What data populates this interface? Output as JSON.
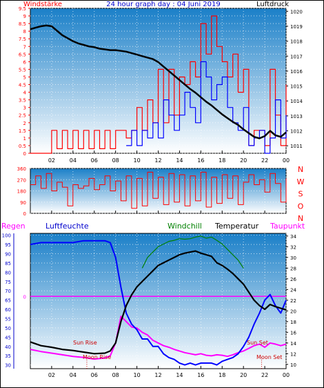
{
  "header": {
    "title": "24 hour graph day : 04 Juni 2019",
    "left_label": "Windstärke",
    "right_label": "Luftdruck"
  },
  "colors": {
    "red": "#ff0000",
    "blue": "#0000ff",
    "black": "#000000",
    "green": "#008000",
    "magenta": "#ff00ff",
    "title_blue": "#0000cc",
    "plot_top": "#1a7fc8",
    "plot_bottom": "#ffffff"
  },
  "x_ticks": [
    "02",
    "04",
    "06",
    "08",
    "10",
    "12",
    "14",
    "16",
    "18",
    "20",
    "22",
    "00"
  ],
  "chart_data": [
    {
      "type": "line",
      "name": "wind-and-pressure",
      "x_unit": "hours since 00:00",
      "ylabel_left": "Windstärke",
      "ylabel_right": "Luftdruck",
      "y_left_ticks": [
        "0",
        "0.5",
        "1",
        "1.5",
        "2",
        "2.5",
        "3",
        "3.5",
        "4",
        "4.5",
        "5",
        "5.5",
        "6",
        "6.5",
        "7",
        "7.5",
        "8",
        "8.5",
        "9",
        "9.5"
      ],
      "y_right_ticks": [
        "1011",
        "1012",
        "1013",
        "1014",
        "1015",
        "1016",
        "1017",
        "1018",
        "1019",
        "1020"
      ],
      "ylim_left": [
        0,
        9.5
      ],
      "ylim_right": [
        1010.5,
        1020.2
      ],
      "series": [
        {
          "name": "Luftdruck",
          "color": "#000000",
          "axis": "right",
          "x": [
            0,
            0.5,
            1,
            1.5,
            2,
            2.5,
            3,
            3.5,
            4,
            4.5,
            5,
            5.5,
            6,
            6.5,
            7,
            7.5,
            8,
            8.5,
            9,
            9.5,
            10,
            10.5,
            11,
            11.5,
            12,
            12.5,
            13,
            13.5,
            14,
            14.5,
            15,
            15.5,
            16,
            16.5,
            17,
            17.5,
            18,
            18.5,
            19,
            19.5,
            20,
            20.5,
            21,
            21.5,
            22,
            22.5,
            23,
            23.5,
            24
          ],
          "y": [
            1018.8,
            1018.9,
            1019,
            1019.05,
            1019,
            1018.7,
            1018.4,
            1018.2,
            1018,
            1017.85,
            1017.75,
            1017.65,
            1017.6,
            1017.5,
            1017.45,
            1017.4,
            1017.4,
            1017.35,
            1017.3,
            1017.2,
            1017.1,
            1017,
            1016.9,
            1016.8,
            1016.6,
            1016.3,
            1016,
            1015.7,
            1015.4,
            1015.1,
            1014.8,
            1014.55,
            1014.25,
            1013.95,
            1013.7,
            1013.4,
            1013.1,
            1012.85,
            1012.6,
            1012.4,
            1012.1,
            1011.85,
            1011.6,
            1011.5,
            1011.65,
            1012,
            1011.7,
            1011.6,
            1011.9
          ]
        },
        {
          "name": "Windböen",
          "color": "#ff0000",
          "axis": "left",
          "x": [
            0,
            0.5,
            1,
            1.5,
            2,
            2.5,
            3,
            3.5,
            4,
            4.5,
            5,
            5.5,
            6,
            6.5,
            7,
            7.5,
            8,
            8.5,
            9,
            9.5,
            10,
            10.5,
            11,
            11.5,
            12,
            12.5,
            13,
            13.5,
            14,
            14.5,
            15,
            15.5,
            16,
            16.5,
            17,
            17.5,
            18,
            18.5,
            19,
            19.5,
            20,
            20.5,
            21,
            21.5,
            22,
            22.5,
            23,
            23.5,
            24
          ],
          "y": [
            0,
            0,
            0,
            0,
            1.5,
            0.3,
            1.5,
            0.3,
            1.5,
            0.3,
            1.5,
            0.3,
            1.5,
            0.3,
            1.5,
            0.3,
            1.5,
            1.5,
            1,
            1.5,
            3,
            1.5,
            3.5,
            2,
            5.5,
            2,
            5.5,
            2.5,
            5,
            4.5,
            6,
            5,
            8.5,
            6.5,
            9,
            7,
            6,
            5,
            6.5,
            4,
            5.5,
            0.5,
            1.5,
            1.5,
            0.5,
            5.5,
            2.5,
            0.5,
            4.5
          ]
        },
        {
          "name": "Windmittel",
          "color": "#0000ff",
          "axis": "left",
          "x": [
            9,
            9.5,
            10,
            10.5,
            11,
            11.5,
            12,
            12.5,
            13,
            13.5,
            14,
            14.5,
            15,
            15.5,
            16,
            16.5,
            17,
            17.5,
            18,
            18.5,
            19,
            19.5,
            20,
            20.5,
            21,
            21.5,
            22,
            22.5,
            23,
            23.5,
            24
          ],
          "y": [
            0.5,
            1.5,
            0.5,
            1.5,
            1,
            2,
            1,
            3.5,
            2.5,
            1.5,
            2.5,
            4,
            3,
            2,
            6,
            5,
            3.5,
            4.5,
            5,
            3,
            2,
            1.5,
            3,
            0.5,
            1,
            1.5,
            0,
            1,
            3.5,
            1,
            2.5
          ]
        }
      ]
    },
    {
      "type": "line",
      "name": "wind-direction",
      "x_unit": "hours since 00:00",
      "y_ticks": [
        "0",
        "90",
        "180",
        "270",
        "360"
      ],
      "direction_labels": [
        "N",
        "W",
        "S",
        "O",
        "N"
      ],
      "ylim": [
        0,
        360
      ],
      "series": [
        {
          "name": "Windrichtung",
          "color": "#ff0000",
          "x": [
            0,
            0.5,
            1,
            1.5,
            2,
            2.5,
            3,
            3.5,
            4,
            4.5,
            5,
            5.5,
            6,
            6.5,
            7,
            7.5,
            8,
            8.5,
            9,
            9.5,
            10,
            10.5,
            11,
            11.5,
            12,
            12.5,
            13,
            13.5,
            14,
            14.5,
            15,
            15.5,
            16,
            16.5,
            17,
            17.5,
            18,
            18.5,
            19,
            19.5,
            20,
            20.5,
            21,
            21.5,
            22,
            22.5,
            23,
            23.5,
            24
          ],
          "y": [
            230,
            300,
            200,
            320,
            180,
            250,
            210,
            60,
            230,
            200,
            220,
            280,
            190,
            230,
            300,
            180,
            260,
            100,
            300,
            40,
            280,
            60,
            330,
            120,
            290,
            70,
            320,
            90,
            310,
            60,
            300,
            100,
            330,
            50,
            290,
            80,
            310,
            120,
            300,
            70,
            250,
            310,
            230,
            270,
            170,
            320,
            240,
            90,
            280
          ]
        }
      ]
    },
    {
      "type": "line",
      "name": "humidity-and-temperature",
      "x_unit": "hours since 00:00",
      "y_left_ticks": [
        "30",
        "35",
        "40",
        "45",
        "50",
        "55",
        "60",
        "65",
        "70",
        "75",
        "80",
        "85",
        "90",
        "95",
        "100"
      ],
      "y_right_ticks": [
        "10",
        "12",
        "14",
        "16",
        "18",
        "20",
        "22",
        "24",
        "26",
        "28",
        "30",
        "32",
        "34"
      ],
      "y_regen_tick": "0",
      "ylim_left": [
        28,
        101
      ],
      "ylim_right": [
        9.2,
        34.5
      ],
      "legend": [
        "Regen",
        "Luftfeuchte",
        "Windchill",
        "Temperatur",
        "Taupunkt"
      ],
      "annotations": [
        "Sun Rise",
        "Moon Rise",
        "Sun Set",
        "Moon Set"
      ],
      "series": [
        {
          "name": "Luftfeuchte",
          "color": "#0000ff",
          "axis": "left",
          "x": [
            0,
            1,
            2,
            3,
            4,
            5,
            6,
            7,
            7.5,
            8,
            8.5,
            9,
            9.5,
            10,
            10.5,
            11,
            11.5,
            12,
            12.5,
            13,
            13.5,
            14,
            14.5,
            15,
            15.5,
            16,
            16.5,
            17,
            17.5,
            18,
            18.5,
            19,
            19.5,
            20,
            20.5,
            21,
            21.5,
            22,
            22.5,
            23,
            23.5,
            24
          ],
          "y": [
            95,
            96,
            96,
            96,
            96,
            97,
            97,
            97,
            96,
            88,
            72,
            58,
            52,
            49,
            44,
            44,
            40,
            40,
            36,
            34,
            33,
            31,
            30,
            31,
            30,
            31,
            31,
            31,
            30,
            32,
            33,
            34,
            36,
            40,
            45,
            52,
            58,
            65,
            68,
            62,
            58,
            65
          ]
        },
        {
          "name": "Temperatur",
          "color": "#000000",
          "axis": "right",
          "x": [
            0,
            1,
            2,
            3,
            4,
            5,
            6,
            7,
            7.5,
            8,
            8.5,
            9,
            9.5,
            10,
            10.5,
            11,
            11.5,
            12,
            12.5,
            13,
            13.5,
            14,
            14.5,
            15,
            15.5,
            16,
            16.5,
            17,
            17.5,
            18,
            18.5,
            19,
            19.5,
            20,
            20.5,
            21,
            21.5,
            22,
            22.5,
            23,
            23.5,
            24
          ],
          "y": [
            14.2,
            13.5,
            13.2,
            12.8,
            12.6,
            12.3,
            12.0,
            12.1,
            12.5,
            14,
            18,
            21,
            23,
            24.5,
            25.5,
            26.5,
            27.5,
            28.5,
            29,
            29.5,
            30,
            30.5,
            30.8,
            31,
            31.2,
            30.8,
            30.5,
            30.2,
            29,
            28.5,
            27.8,
            27,
            26,
            25,
            23.5,
            22,
            21,
            20.3,
            21.2,
            20.8,
            20.5,
            20.2
          ]
        },
        {
          "name": "Taupunkt",
          "color": "#ff00ff",
          "axis": "right",
          "x": [
            0,
            1,
            2,
            3,
            4,
            5,
            6,
            7,
            7.5,
            8,
            8.5,
            9,
            9.5,
            10,
            10.5,
            11,
            11.5,
            12,
            12.5,
            13,
            13.5,
            14,
            14.5,
            15,
            15.5,
            16,
            16.5,
            17,
            17.5,
            18,
            18.5,
            19,
            19.5,
            20,
            20.5,
            21,
            21.5,
            22,
            22.5,
            23,
            23.5,
            24
          ],
          "y": [
            12.8,
            12.4,
            12.1,
            11.8,
            11.5,
            11.3,
            11.0,
            11.2,
            11.6,
            14,
            19,
            18,
            17,
            16.8,
            16,
            15.5,
            14.5,
            14,
            13.5,
            13.2,
            12.8,
            12.5,
            12.2,
            12,
            11.8,
            12,
            11.7,
            11.6,
            11.8,
            11.7,
            11.5,
            11.8,
            12.2,
            12.5,
            13,
            13.5,
            13.8,
            13.2,
            14,
            13.8,
            13.5,
            13.8
          ]
        },
        {
          "name": "Windchill",
          "color": "#008000",
          "axis": "right",
          "x": [
            10.5,
            11,
            11.5,
            12,
            12.5,
            13,
            13.5,
            14,
            14.5,
            15,
            15.5,
            16,
            16.5,
            17,
            17.5,
            18,
            18.5,
            19,
            19.5,
            20
          ],
          "y": [
            28,
            30,
            31,
            32,
            32.5,
            33,
            33.2,
            33.5,
            33.4,
            33.5,
            33.8,
            34,
            33.6,
            33.8,
            33.2,
            32.5,
            31.5,
            30.5,
            29.5,
            28
          ]
        },
        {
          "name": "Regen",
          "color": "#ff00ff",
          "axis": "left",
          "x": [
            0,
            24
          ],
          "y": [
            67,
            67
          ]
        }
      ]
    }
  ]
}
